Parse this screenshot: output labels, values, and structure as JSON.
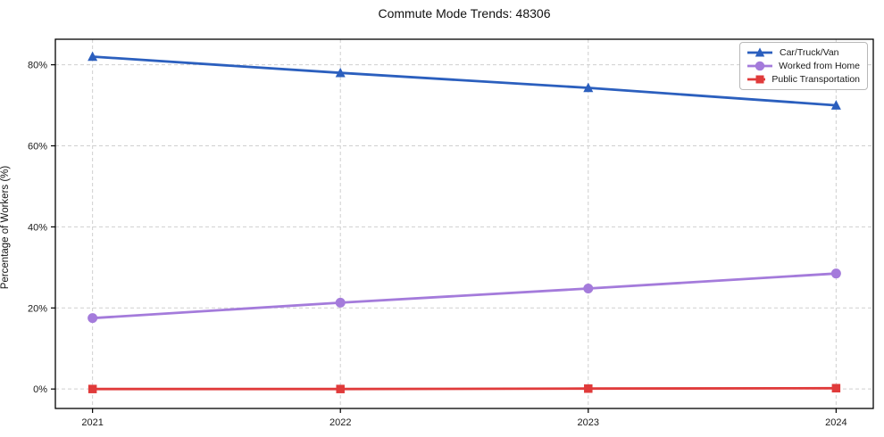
{
  "chart_data": {
    "type": "line",
    "title": "Commute Mode Trends: 48306",
    "xlabel": "",
    "ylabel": "Percentage of Workers (%)",
    "x": [
      2021,
      2022,
      2023,
      2024
    ],
    "x_tick_labels": [
      "2021",
      "2022",
      "2023",
      "2024"
    ],
    "y_ticks": [
      0,
      20,
      40,
      60,
      80
    ],
    "y_tick_suffix": "%",
    "xlim": [
      2020.85,
      2024.15
    ],
    "ylim": [
      -4.8,
      86.3
    ],
    "grid": true,
    "grid_style": "dashed",
    "legend_position": "top-right",
    "series": [
      {
        "name": "Car/Truck/Van",
        "color": "#2b5fbe",
        "marker": "triangle",
        "values": [
          82.0,
          78.0,
          74.3,
          70.0
        ]
      },
      {
        "name": "Worked from Home",
        "color": "#a47bdb",
        "marker": "circle",
        "values": [
          17.5,
          21.3,
          24.8,
          28.5
        ]
      },
      {
        "name": "Public Transportation",
        "color": "#e03b3b",
        "marker": "square",
        "values": [
          0.0,
          0.0,
          0.1,
          0.2
        ]
      }
    ]
  }
}
